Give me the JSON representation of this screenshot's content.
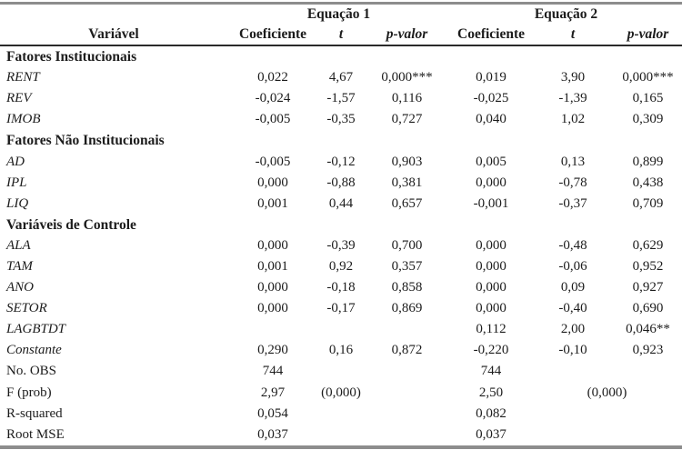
{
  "page": {
    "background": "#ffffff",
    "text_color": "#1c1c1c",
    "rule_gray": "#8d8d8d",
    "rule_dark": "#2a2a2a"
  },
  "table": {
    "header": {
      "eq1": "Equação 1",
      "eq2": "Equação 2",
      "variavel": "Variável",
      "coeficiente": "Coeficiente",
      "t": "t",
      "p_valor": "p-valor"
    },
    "rows": [
      {
        "kind": "section",
        "label": "Fatores Institucionais",
        "cells": []
      },
      {
        "kind": "var",
        "label": "RENT",
        "cells": [
          "0,022",
          "4,67",
          "0,000***",
          "0,019",
          "3,90",
          "0,000***"
        ]
      },
      {
        "kind": "var",
        "label": "REV",
        "cells": [
          "-0,024",
          "-1,57",
          "0,116",
          "-0,025",
          "-1,39",
          "0,165"
        ]
      },
      {
        "kind": "var",
        "label": "IMOB",
        "cells": [
          "-0,005",
          "-0,35",
          "0,727",
          "0,040",
          "1,02",
          "0,309"
        ]
      },
      {
        "kind": "section",
        "label": "Fatores Não Institucionais",
        "cells": []
      },
      {
        "kind": "var",
        "label": "AD",
        "cells": [
          "-0,005",
          "-0,12",
          "0,903",
          "0,005",
          "0,13",
          "0,899"
        ]
      },
      {
        "kind": "var",
        "label": "IPL",
        "cells": [
          "0,000",
          "-0,88",
          "0,381",
          "0,000",
          "-0,78",
          "0,438"
        ]
      },
      {
        "kind": "var",
        "label": "LIQ",
        "cells": [
          "0,001",
          "0,44",
          "0,657",
          "-0,001",
          "-0,37",
          "0,709"
        ]
      },
      {
        "kind": "section",
        "label": "Variáveis de Controle",
        "cells": []
      },
      {
        "kind": "var",
        "label": "ALA",
        "cells": [
          "0,000",
          "-0,39",
          "0,700",
          "0,000",
          "-0,48",
          "0,629"
        ]
      },
      {
        "kind": "var",
        "label": "TAM",
        "cells": [
          "0,001",
          "0,92",
          "0,357",
          "0,000",
          "-0,06",
          "0,952"
        ]
      },
      {
        "kind": "var",
        "label": "ANO",
        "cells": [
          "0,000",
          "-0,18",
          "0,858",
          "0,000",
          "0,09",
          "0,927"
        ]
      },
      {
        "kind": "var",
        "label": "SETOR",
        "cells": [
          "0,000",
          "-0,17",
          "0,869",
          "0,000",
          "-0,40",
          "0,690"
        ]
      },
      {
        "kind": "var",
        "label": "LAGBTDT",
        "cells": [
          "",
          "",
          "",
          "0,112",
          "2,00",
          "0,046**"
        ]
      },
      {
        "kind": "var",
        "label": "Constante",
        "cells": [
          "0,290",
          "0,16",
          "0,872",
          "-0,220",
          "-0,10",
          "0,923"
        ]
      },
      {
        "kind": "stat",
        "label": "No. OBS",
        "cells": [
          "744",
          "",
          "",
          "744",
          "",
          ""
        ]
      },
      {
        "kind": "stat",
        "label": "F (prob)",
        "cells": [
          "2,97",
          "(0,000)",
          "",
          "2,50",
          "(0,000)"
        ],
        "spans": [
          1,
          1,
          1,
          1,
          2
        ]
      },
      {
        "kind": "stat",
        "label": "R-squared",
        "cells": [
          "0,054",
          "",
          "",
          "0,082",
          "",
          ""
        ]
      },
      {
        "kind": "stat",
        "label": "Root MSE",
        "cells": [
          "0,037",
          "",
          "",
          "0,037",
          "",
          ""
        ]
      }
    ]
  }
}
